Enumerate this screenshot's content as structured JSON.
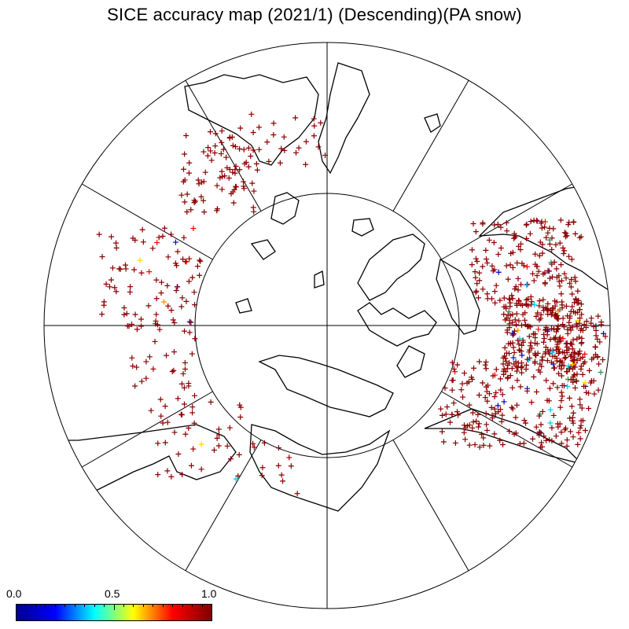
{
  "title": "SICE accuracy map (2021/1) (Descending)(PA snow)",
  "colorbar": {
    "min_label": "0.0",
    "mid_label": "0.5",
    "max_label": "1.0",
    "stops": [
      "#00008f",
      "#0000ff",
      "#00ffff",
      "#ffff00",
      "#ff0000",
      "#7f0000"
    ]
  },
  "colors": {
    "marker_dominant": "#8b0000",
    "coastline": "#000000",
    "graticule": "#000000"
  },
  "map": {
    "projection": "polar stereographic (north pole)",
    "meridian_count": 12,
    "inner_latitude_circle": true
  }
}
